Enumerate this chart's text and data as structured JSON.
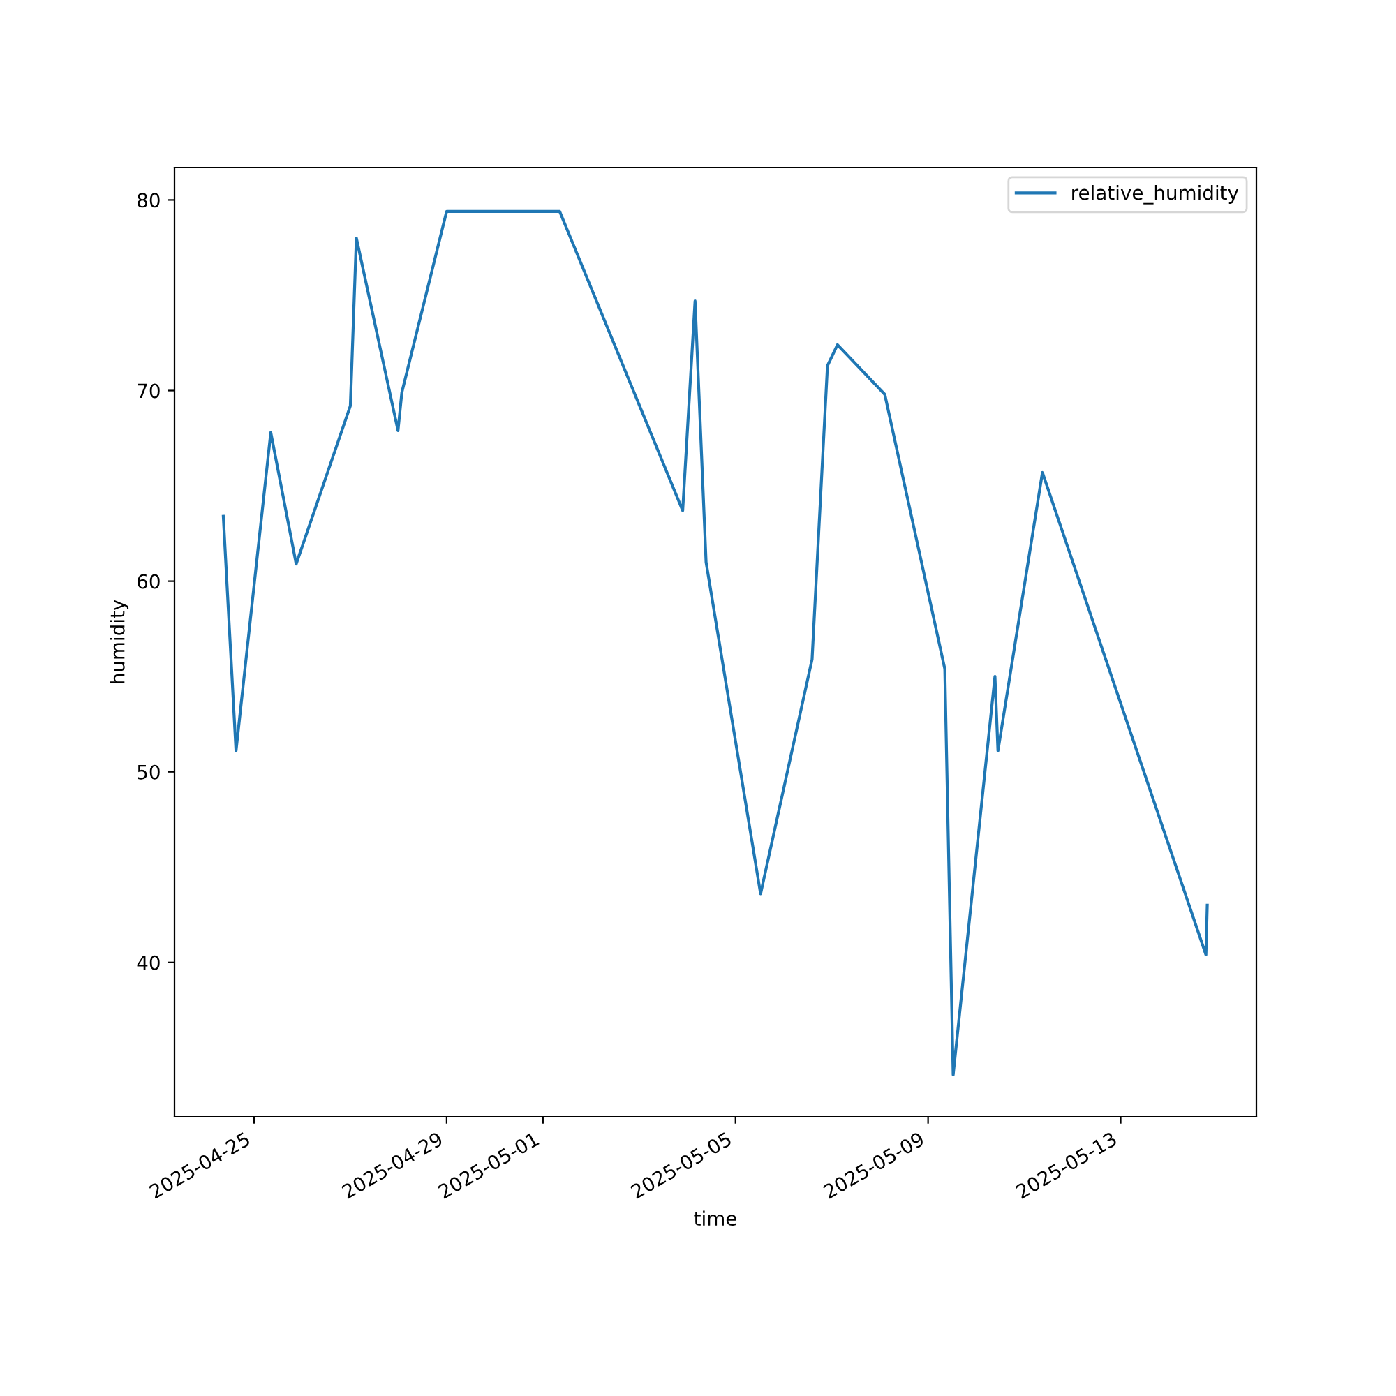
{
  "chart_data": {
    "type": "line",
    "xlabel": "time",
    "ylabel": "humidity",
    "x": [
      "2025-04-24T08:40",
      "2025-04-24T15:00",
      "2025-04-25T08:20",
      "2025-04-25T21:00",
      "2025-04-27T00:00",
      "2025-04-27T03:00",
      "2025-04-27T23:45",
      "2025-04-28T01:40",
      "2025-04-29T00:00",
      "2025-05-01T08:20",
      "2025-05-03T21:40",
      "2025-05-04T03:50",
      "2025-05-04T09:20",
      "2025-05-05T12:30",
      "2025-05-06T14:10",
      "2025-05-06T21:50",
      "2025-05-07T02:50",
      "2025-05-08T02:25",
      "2025-05-09T08:20",
      "2025-05-09T12:30",
      "2025-05-10T09:20",
      "2025-05-10T10:50",
      "2025-05-11T09:00",
      "2025-05-14T18:30",
      "2025-05-14T19:10"
    ],
    "series": [
      {
        "name": "relative_humidity",
        "color": "#1f77b4",
        "values": [
          63.4,
          51.1,
          67.8,
          60.9,
          69.2,
          78.0,
          67.9,
          69.9,
          79.4,
          79.4,
          63.7,
          74.7,
          61.0,
          43.6,
          55.9,
          71.3,
          72.4,
          69.8,
          55.4,
          34.1,
          55.0,
          51.1,
          65.7,
          40.4,
          43.0
        ]
      }
    ],
    "xlim": [
      "2025-04-23T08:20",
      "2025-05-15T19:40"
    ],
    "xticks": [
      "2025-04-25",
      "2025-04-29",
      "2025-05-01",
      "2025-05-05",
      "2025-05-09",
      "2025-05-13"
    ],
    "ylim": [
      31.9,
      81.7
    ],
    "yticks": [
      40,
      50,
      60,
      70,
      80
    ],
    "grid": false,
    "legend": "top right",
    "marker": "none",
    "line_style": "solid"
  }
}
